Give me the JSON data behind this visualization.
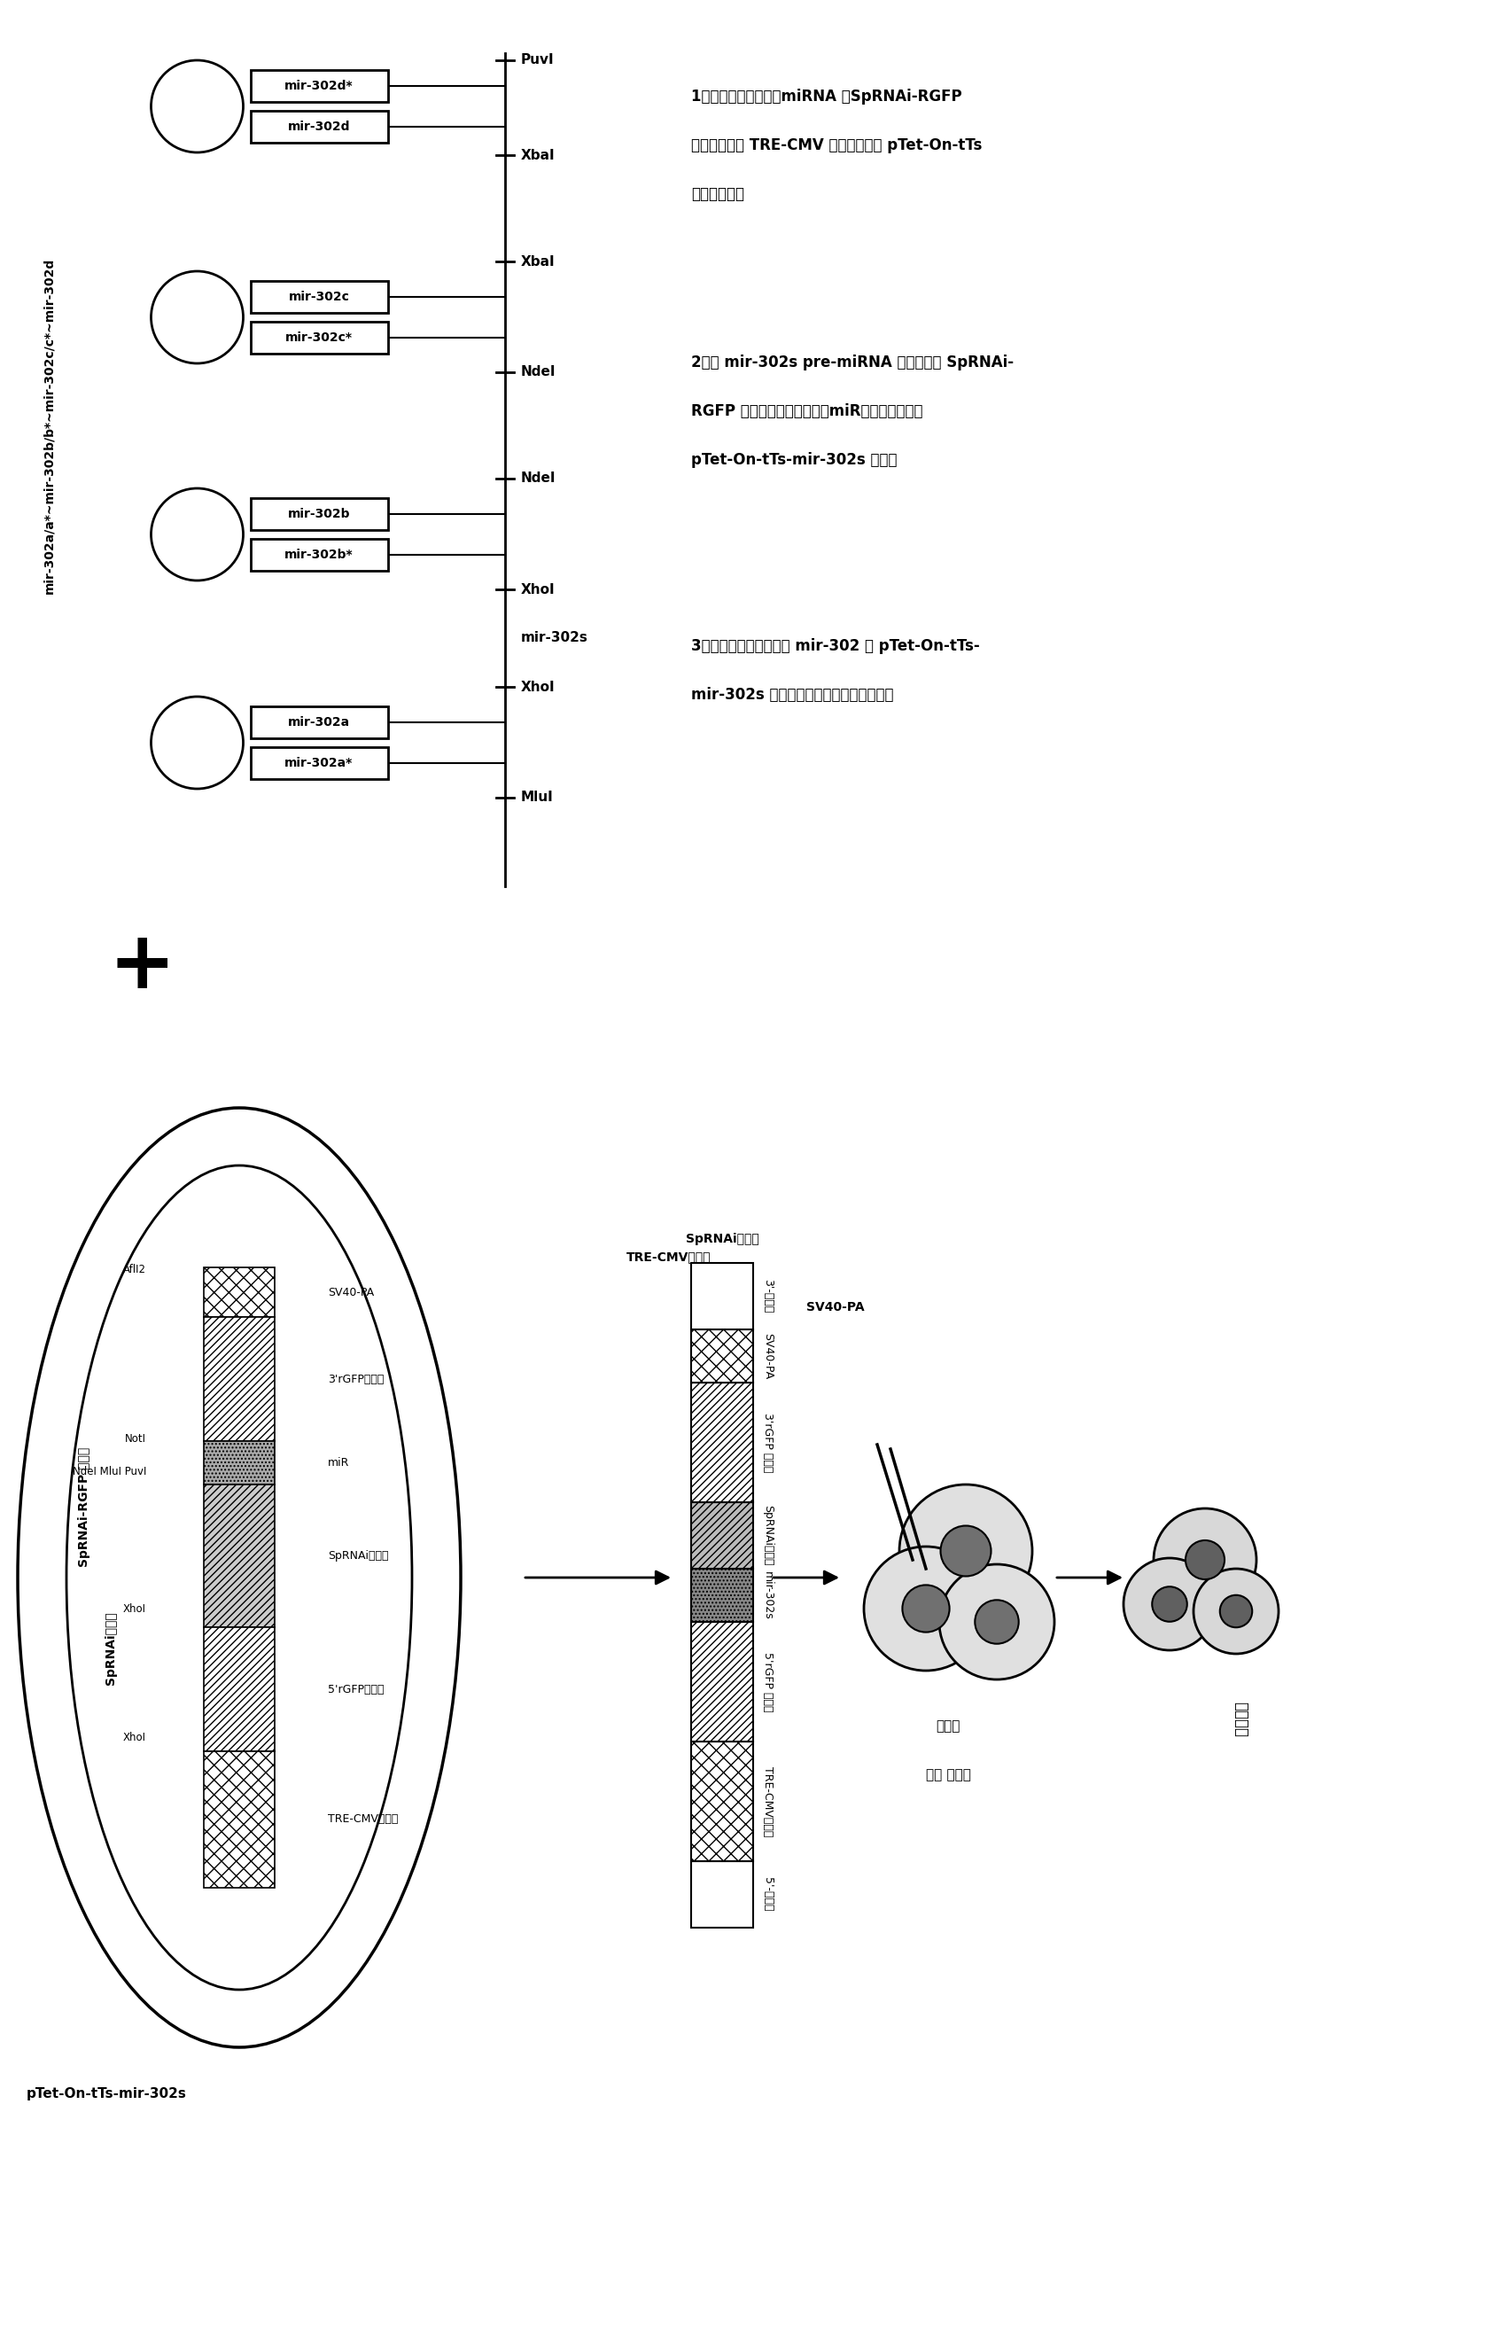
{
  "bg_color": "#ffffff",
  "top_label": "mir-302a/a*~mir-302b/b*~mir-302c/c*~mir-302d",
  "mir302s_label": "mir-302s",
  "plasmid_label": "pTet-On-tTs-mir-302s",
  "sprnai_rgfp_label": "SpRNAi-RGFP 转基因",
  "sprnai_label": "SpRNAi内含子",
  "arrow_label": "同源插入",
  "electro_label1": "电穿孔",
  "electro_label2": "或者 微注射",
  "step1_line1": "1、将表达预先设计的miRNA 的SpRNAi-RGFP",
  "step1_line2": "转基因插入到 TRE-CMV 启动子驱动的 pTet-On-tTs",
  "step1_line3": "质粒载体中；",
  "step2_line1": "2、将 mir-302s pre-miRNA 基因群置于 SpRNAi-",
  "step2_line2": "RGFP 转基因的内含子区域（miR），以形成新的",
  "step2_line3": "pTet-On-tTs-mir-302s 载体；",
  "step3_line1": "3、使用电穿孔法将编码 mir-302 的 pTet-On-tTs-",
  "step3_line2": "mir-302s 载体转换到体细胞宿主细胞中；"
}
